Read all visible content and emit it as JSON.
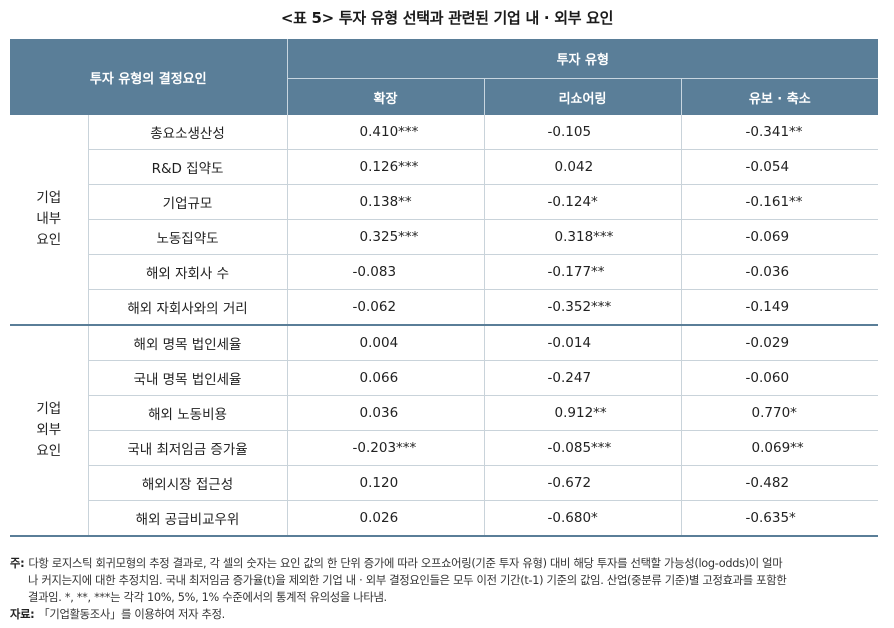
{
  "title": "<표 5> 투자 유형 선택과 관련된 기업 내 · 외부 요인",
  "header": {
    "determinants": "투자 유형의 결정요인",
    "investment_type": "투자 유형",
    "columns": [
      "확장",
      "리쇼어링",
      "유보 · 축소"
    ]
  },
  "groups": [
    {
      "label_lines": [
        "기업",
        "내부",
        "요인"
      ],
      "rows": [
        {
          "factor": "총요소생산성",
          "values": [
            "0.410***",
            "-0.105",
            "-0.341**"
          ]
        },
        {
          "factor": "R&D 집약도",
          "values": [
            "0.126***",
            "0.042",
            "-0.054"
          ]
        },
        {
          "factor": "기업규모",
          "values": [
            "0.138**",
            "-0.124*",
            "-0.161**"
          ]
        },
        {
          "factor": "노동집약도",
          "values": [
            "0.325***",
            "0.318***",
            "-0.069"
          ]
        },
        {
          "factor": "해외 자회사 수",
          "values": [
            "-0.083",
            "-0.177**",
            "-0.036"
          ]
        },
        {
          "factor": "해외 자회사와의 거리",
          "values": [
            "-0.062",
            "-0.352***",
            "-0.149"
          ]
        }
      ]
    },
    {
      "label_lines": [
        "기업",
        "외부",
        "요인"
      ],
      "rows": [
        {
          "factor": "해외 명목 법인세율",
          "values": [
            "0.004",
            "-0.014",
            "-0.029"
          ]
        },
        {
          "factor": "국내 명목 법인세율",
          "values": [
            "0.066",
            "-0.247",
            "-0.060"
          ]
        },
        {
          "factor": "해외 노동비용",
          "values": [
            "0.036",
            "0.912**",
            "0.770*"
          ]
        },
        {
          "factor": "국내 최저임금 증가율",
          "values": [
            "-0.203***",
            "-0.085***",
            "0.069**"
          ]
        },
        {
          "factor": "해외시장 접근성",
          "values": [
            "0.120",
            "-0.672",
            "-0.482"
          ]
        },
        {
          "factor": "해외 공급비교우위",
          "values": [
            "0.026",
            "-0.680*",
            "-0.635*"
          ]
        }
      ]
    }
  ],
  "notes": {
    "note_label": "주:",
    "note_line1": "다항 로지스틱 회귀모형의 추정 결과로, 각 셀의 숫자는 요인 값의 한 단위 증가에 따라 오프쇼어링(기준 투자 유형) 대비 해당 투자를 선택할 가능성(log-odds)이 얼마",
    "note_line2": "나 커지는지에 대한 추정치임. 국내 최저임금 증가율(t)을 제외한 기업 내 · 외부 결정요인들은 모두 이전 기간(t-1) 기준의 값임. 산업(중분류 기준)별 고정효과를 포함한",
    "note_line3": "결과임. *, **, ***는 각각 10%, 5%, 1% 수준에서의 통계적 유의성을 나타냄.",
    "source_label": "자료:",
    "source_text": "「기업활동조사」를 이용하여 저자 추정."
  }
}
